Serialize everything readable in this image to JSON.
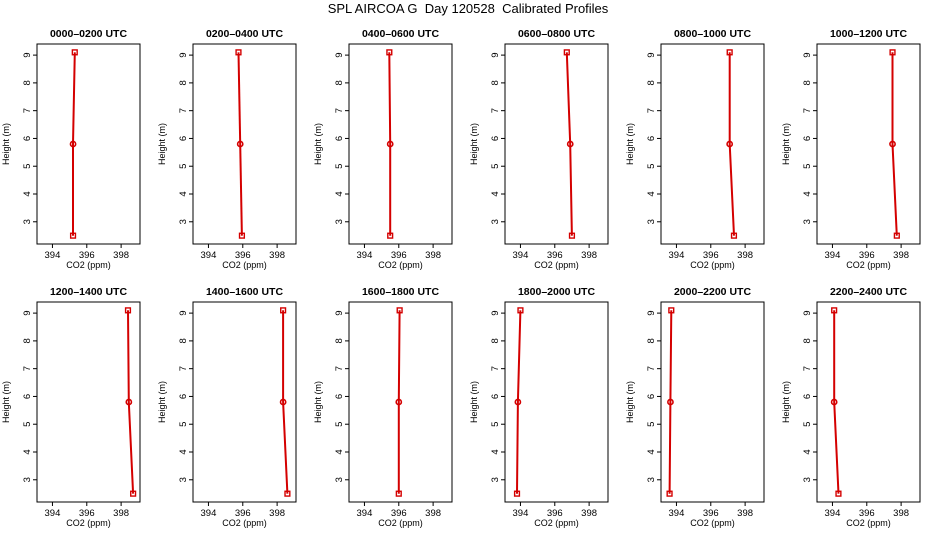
{
  "title": "SPL AIRCOA G  Day 120528  Calibrated Profiles",
  "colors": {
    "series": "#d40000",
    "axis": "#000000"
  },
  "chart_data": [
    {
      "type": "line",
      "title": "0000–0200 UTC",
      "xlabel": "CO2 (ppm)",
      "ylabel": "Height (m)",
      "xlim": [
        393.1,
        399.1
      ],
      "ylim": [
        2.2,
        9.4
      ],
      "xticks": [
        394,
        396,
        398
      ],
      "yticks": [
        3,
        4,
        5,
        6,
        7,
        8,
        9
      ],
      "x": [
        395.3,
        395.2,
        395.2
      ],
      "y": [
        9.1,
        5.8,
        2.5
      ]
    },
    {
      "type": "line",
      "title": "0200–0400 UTC",
      "xlabel": "CO2 (ppm)",
      "ylabel": "Height (m)",
      "xlim": [
        393.1,
        399.1
      ],
      "ylim": [
        2.2,
        9.4
      ],
      "xticks": [
        394,
        396,
        398
      ],
      "yticks": [
        3,
        4,
        5,
        6,
        7,
        8,
        9
      ],
      "x": [
        395.75,
        395.85,
        395.95
      ],
      "y": [
        9.1,
        5.8,
        2.5
      ]
    },
    {
      "type": "line",
      "title": "0400–0600 UTC",
      "xlabel": "CO2 (ppm)",
      "ylabel": "Height (m)",
      "xlim": [
        393.1,
        399.1
      ],
      "ylim": [
        2.2,
        9.4
      ],
      "xticks": [
        394,
        396,
        398
      ],
      "yticks": [
        3,
        4,
        5,
        6,
        7,
        8,
        9
      ],
      "x": [
        395.45,
        395.5,
        395.5
      ],
      "y": [
        9.1,
        5.8,
        2.5
      ]
    },
    {
      "type": "line",
      "title": "0600–0800 UTC",
      "xlabel": "CO2 (ppm)",
      "ylabel": "Height (m)",
      "xlim": [
        393.1,
        399.1
      ],
      "ylim": [
        2.2,
        9.4
      ],
      "xticks": [
        394,
        396,
        398
      ],
      "yticks": [
        3,
        4,
        5,
        6,
        7,
        8,
        9
      ],
      "x": [
        396.7,
        396.9,
        397.0
      ],
      "y": [
        9.1,
        5.8,
        2.5
      ]
    },
    {
      "type": "line",
      "title": "0800–1000 UTC",
      "xlabel": "CO2 (ppm)",
      "ylabel": "Height (m)",
      "xlim": [
        393.1,
        399.1
      ],
      "ylim": [
        2.2,
        9.4
      ],
      "xticks": [
        394,
        396,
        398
      ],
      "yticks": [
        3,
        4,
        5,
        6,
        7,
        8,
        9
      ],
      "x": [
        397.1,
        397.1,
        397.35
      ],
      "y": [
        9.1,
        5.8,
        2.5
      ]
    },
    {
      "type": "line",
      "title": "1000–1200 UTC",
      "xlabel": "CO2 (ppm)",
      "ylabel": "Height (m)",
      "xlim": [
        393.1,
        399.1
      ],
      "ylim": [
        2.2,
        9.4
      ],
      "xticks": [
        394,
        396,
        398
      ],
      "yticks": [
        3,
        4,
        5,
        6,
        7,
        8,
        9
      ],
      "x": [
        397.5,
        397.5,
        397.75
      ],
      "y": [
        9.1,
        5.8,
        2.5
      ]
    },
    {
      "type": "line",
      "title": "1200–1400 UTC",
      "xlabel": "CO2 (ppm)",
      "ylabel": "Height (m)",
      "xlim": [
        393.1,
        399.1
      ],
      "ylim": [
        2.2,
        9.4
      ],
      "xticks": [
        394,
        396,
        398
      ],
      "yticks": [
        3,
        4,
        5,
        6,
        7,
        8,
        9
      ],
      "x": [
        398.4,
        398.45,
        398.7
      ],
      "y": [
        9.1,
        5.8,
        2.5
      ]
    },
    {
      "type": "line",
      "title": "1400–1600 UTC",
      "xlabel": "CO2 (ppm)",
      "ylabel": "Height (m)",
      "xlim": [
        393.1,
        399.1
      ],
      "ylim": [
        2.2,
        9.4
      ],
      "xticks": [
        394,
        396,
        398
      ],
      "yticks": [
        3,
        4,
        5,
        6,
        7,
        8,
        9
      ],
      "x": [
        398.35,
        398.35,
        398.6
      ],
      "y": [
        9.1,
        5.8,
        2.5
      ]
    },
    {
      "type": "line",
      "title": "1600–1800 UTC",
      "xlabel": "CO2 (ppm)",
      "ylabel": "Height (m)",
      "xlim": [
        393.1,
        399.1
      ],
      "ylim": [
        2.2,
        9.4
      ],
      "xticks": [
        394,
        396,
        398
      ],
      "yticks": [
        3,
        4,
        5,
        6,
        7,
        8,
        9
      ],
      "x": [
        396.05,
        396.0,
        396.0
      ],
      "y": [
        9.1,
        5.8,
        2.5
      ]
    },
    {
      "type": "line",
      "title": "1800–2000 UTC",
      "xlabel": "CO2 (ppm)",
      "ylabel": "Height (m)",
      "xlim": [
        393.1,
        399.1
      ],
      "ylim": [
        2.2,
        9.4
      ],
      "xticks": [
        394,
        396,
        398
      ],
      "yticks": [
        3,
        4,
        5,
        6,
        7,
        8,
        9
      ],
      "x": [
        394.0,
        393.85,
        393.8
      ],
      "y": [
        9.1,
        5.8,
        2.5
      ]
    },
    {
      "type": "line",
      "title": "2000–2200 UTC",
      "xlabel": "CO2 (ppm)",
      "ylabel": "Height (m)",
      "xlim": [
        393.1,
        399.1
      ],
      "ylim": [
        2.2,
        9.4
      ],
      "xticks": [
        394,
        396,
        398
      ],
      "yticks": [
        3,
        4,
        5,
        6,
        7,
        8,
        9
      ],
      "x": [
        393.7,
        393.65,
        393.6
      ],
      "y": [
        9.1,
        5.8,
        2.5
      ]
    },
    {
      "type": "line",
      "title": "2200–2400 UTC",
      "xlabel": "CO2 (ppm)",
      "ylabel": "Height (m)",
      "xlim": [
        393.1,
        399.1
      ],
      "ylim": [
        2.2,
        9.4
      ],
      "xticks": [
        394,
        396,
        398
      ],
      "yticks": [
        3,
        4,
        5,
        6,
        7,
        8,
        9
      ],
      "x": [
        394.1,
        394.1,
        394.35
      ],
      "y": [
        9.1,
        5.8,
        2.5
      ]
    }
  ]
}
